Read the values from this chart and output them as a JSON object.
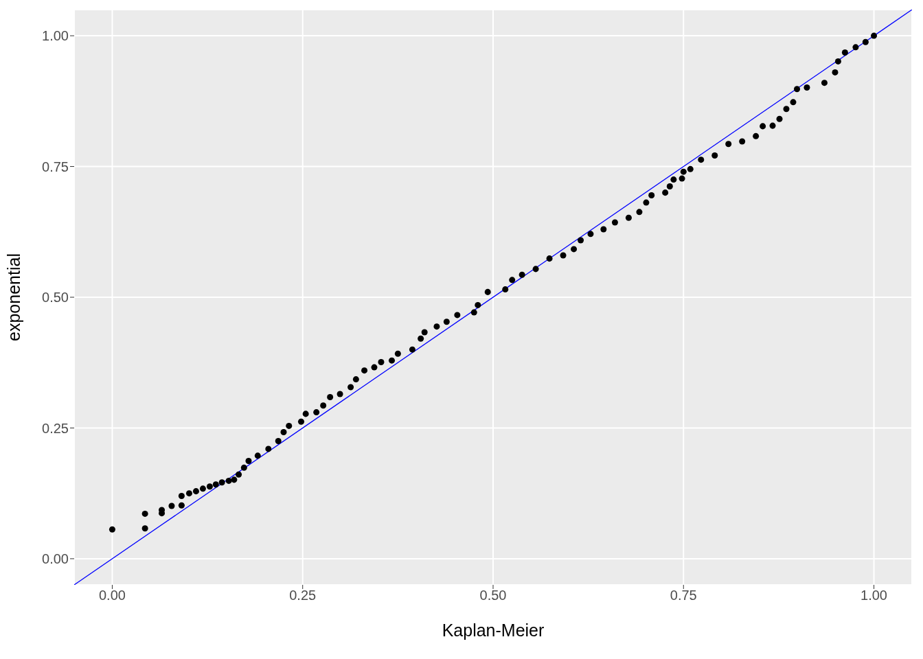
{
  "chart_data": {
    "type": "scatter",
    "xlabel": "Kaplan-Meier",
    "ylabel": "exponential",
    "xlim": [
      -0.05,
      1.05
    ],
    "ylim": [
      -0.05,
      1.05
    ],
    "xticks": [
      {
        "value": 0,
        "label": "0.00"
      },
      {
        "value": 0.25,
        "label": "0.25"
      },
      {
        "value": 0.5,
        "label": "0.50"
      },
      {
        "value": 0.75,
        "label": "0.75"
      },
      {
        "value": 1,
        "label": "1.00"
      }
    ],
    "yticks": [
      {
        "value": 0,
        "label": "0.00"
      },
      {
        "value": 0.25,
        "label": "0.25"
      },
      {
        "value": 0.5,
        "label": "0.50"
      },
      {
        "value": 0.75,
        "label": "0.75"
      },
      {
        "value": 1,
        "label": "1.00"
      }
    ],
    "grid": true,
    "marker": "circle",
    "series": [
      {
        "color": "#000000",
        "x": [
          0.0,
          0.043,
          0.043,
          0.065,
          0.065,
          0.078,
          0.091,
          0.091,
          0.101,
          0.11,
          0.119,
          0.128,
          0.136,
          0.144,
          0.153,
          0.16,
          0.166,
          0.173,
          0.179,
          0.191,
          0.205,
          0.218,
          0.225,
          0.232,
          0.248,
          0.254,
          0.268,
          0.277,
          0.286,
          0.299,
          0.313,
          0.32,
          0.331,
          0.344,
          0.353,
          0.367,
          0.375,
          0.394,
          0.405,
          0.41,
          0.426,
          0.439,
          0.453,
          0.475,
          0.48,
          0.493,
          0.516,
          0.525,
          0.538,
          0.556,
          0.574,
          0.592,
          0.606,
          0.615,
          0.628,
          0.645,
          0.66,
          0.678,
          0.692,
          0.701,
          0.708,
          0.726,
          0.732,
          0.737,
          0.748,
          0.75,
          0.759,
          0.773,
          0.791,
          0.809,
          0.827,
          0.845,
          0.854,
          0.867,
          0.876,
          0.885,
          0.894,
          0.899,
          0.912,
          0.935,
          0.949,
          0.953,
          0.962,
          0.976,
          0.989,
          1.0
        ],
        "values": [
          0.056,
          0.086,
          0.058,
          0.093,
          0.087,
          0.101,
          0.12,
          0.102,
          0.125,
          0.129,
          0.134,
          0.138,
          0.142,
          0.146,
          0.149,
          0.151,
          0.161,
          0.174,
          0.187,
          0.197,
          0.21,
          0.225,
          0.242,
          0.254,
          0.262,
          0.277,
          0.28,
          0.293,
          0.309,
          0.315,
          0.328,
          0.343,
          0.36,
          0.366,
          0.376,
          0.379,
          0.392,
          0.4,
          0.421,
          0.433,
          0.444,
          0.453,
          0.466,
          0.471,
          0.485,
          0.51,
          0.515,
          0.533,
          0.543,
          0.554,
          0.574,
          0.58,
          0.592,
          0.609,
          0.621,
          0.63,
          0.643,
          0.652,
          0.663,
          0.681,
          0.695,
          0.7,
          0.712,
          0.725,
          0.727,
          0.74,
          0.745,
          0.763,
          0.771,
          0.793,
          0.798,
          0.808,
          0.827,
          0.828,
          0.841,
          0.86,
          0.873,
          0.898,
          0.901,
          0.91,
          0.93,
          0.951,
          0.968,
          0.978,
          0.988,
          1.0
        ]
      },
      {
        "type": "line",
        "color": "#0000ff",
        "marker": "none",
        "x": [
          -0.05,
          1.05
        ],
        "values": [
          -0.05,
          1.05
        ]
      }
    ]
  }
}
